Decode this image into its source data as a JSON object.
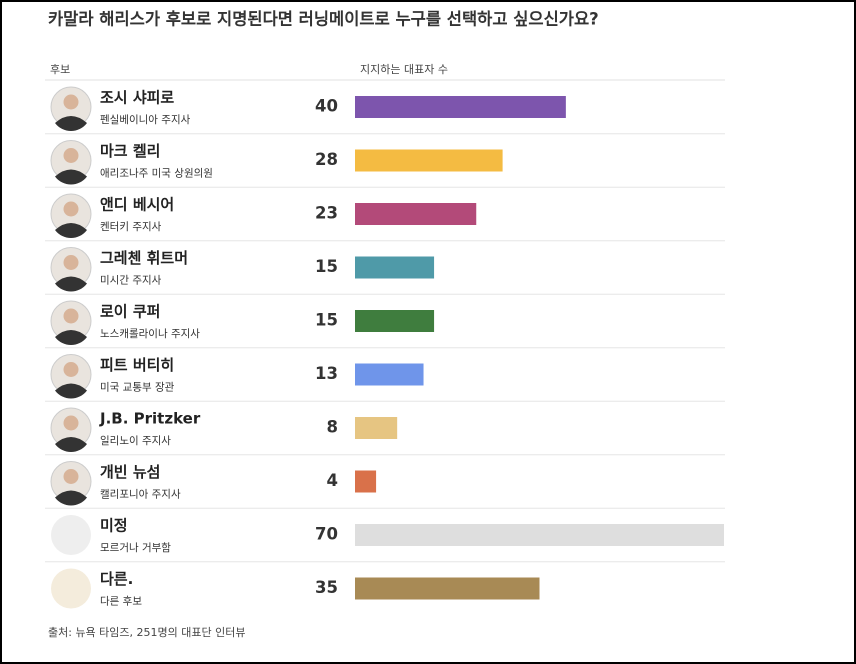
{
  "chart_data": {
    "type": "bar",
    "title": "카말라 해리스가 후보로 지명된다면 러닝메이트로 누구를 선택하고 싶으신가요?",
    "category_header": "후보",
    "value_header": "지지하는 대표자 수",
    "categories": [
      "조시 샤피로",
      "마크 켈리",
      "앤디 베시어",
      "그레첸 휘트머",
      "로이 쿠퍼",
      "피트 버티히",
      "J.B. Pritzker",
      "개빈 뉴섬",
      "미정",
      "다른."
    ],
    "subtitles": [
      "펜실베이니아 주지사",
      "애리조나주 미국 상원의원",
      "켄터키 주지사",
      "미시간 주지사",
      "노스캐롤라이나 주지사",
      "미국 교통부 장관",
      "일리노이 주지사",
      "캘리포니아 주지사",
      "모르거나 거부함",
      "다른 후보"
    ],
    "values": [
      40,
      28,
      23,
      15,
      15,
      13,
      8,
      4,
      70,
      35
    ],
    "colors": [
      "#7d55ad",
      "#f4bb42",
      "#b34a79",
      "#4f9aa8",
      "#3f7d3e",
      "#6f95ea",
      "#e6c582",
      "#d9714a",
      "#dedede",
      "#a88a55"
    ],
    "source": "출처: 뉴욕 타임즈, 251명의 대표단 인터뷰"
  }
}
